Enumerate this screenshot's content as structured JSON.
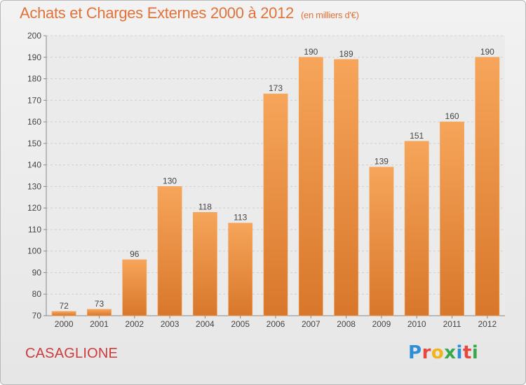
{
  "header": {
    "title": "Achats et Charges Externes 2000 à 2012",
    "unit": "(en milliers d'€)"
  },
  "footer": {
    "commune": "CASAGLIONE",
    "brand_letters": [
      "P",
      "r",
      "o",
      "x",
      "i",
      "t",
      "i"
    ],
    "brand_colors": [
      "#2f8fd6",
      "#e7473c",
      "#f2b31b",
      "#37a84b",
      "#2f8fd6",
      "#e7473c",
      "#37a84b"
    ]
  },
  "colors": {
    "bar_light": "#f6a55a",
    "bar_dark": "#d8772b",
    "axis": "#888888",
    "grid": "#d0d0d0",
    "title": "#e0733a",
    "commune": "#cf3a3a"
  },
  "chart_data": {
    "type": "bar",
    "categories": [
      "2000",
      "2001",
      "2002",
      "2003",
      "2004",
      "2005",
      "2006",
      "2007",
      "2008",
      "2009",
      "2010",
      "2011",
      "2012"
    ],
    "values": [
      72,
      73,
      96,
      130,
      118,
      113,
      173,
      190,
      189,
      139,
      151,
      160,
      190
    ],
    "data_labels": [
      "72",
      "73",
      "96",
      "130",
      "118",
      "113",
      "173",
      "190",
      "189",
      "139",
      "151",
      "160",
      "190"
    ],
    "ylim": [
      70,
      200
    ],
    "yticks": [
      70,
      80,
      90,
      100,
      110,
      120,
      130,
      140,
      150,
      160,
      170,
      180,
      190,
      200
    ],
    "grid": "horizontal dashed",
    "title": "Achats et Charges Externes 2000 à 2012",
    "subtitle": "(en milliers d'€)",
    "xlabel": "",
    "ylabel": ""
  }
}
